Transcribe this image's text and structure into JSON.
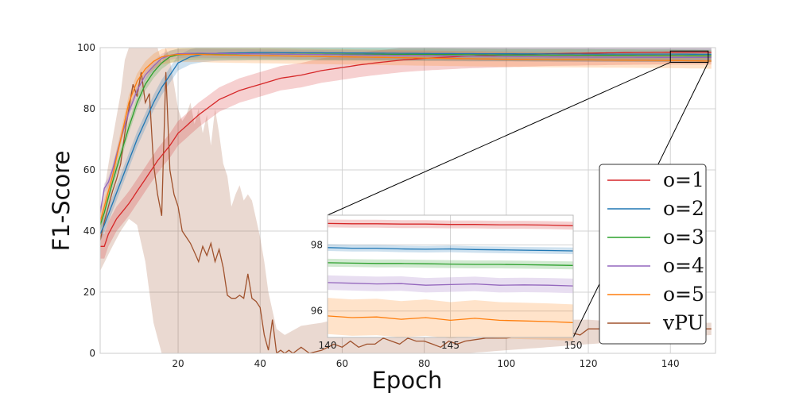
{
  "chart_data": {
    "type": "line",
    "title": "",
    "xlabel": "Epoch",
    "ylabel": "F1-Score",
    "xlim": [
      1,
      151
    ],
    "ylim": [
      0,
      100
    ],
    "xticks": [
      20,
      40,
      60,
      80,
      100,
      120,
      140
    ],
    "yticks": [
      0,
      20,
      40,
      60,
      80,
      100
    ],
    "grid": true,
    "legend_position": "lower-right",
    "series": [
      {
        "name": "o=1",
        "color": "#d62728",
        "points": [
          [
            1,
            35
          ],
          [
            2,
            35
          ],
          [
            3,
            39
          ],
          [
            5,
            44
          ],
          [
            8,
            49
          ],
          [
            10,
            53
          ],
          [
            12,
            57
          ],
          [
            15,
            63
          ],
          [
            18,
            68
          ],
          [
            20,
            72
          ],
          [
            25,
            78
          ],
          [
            30,
            83
          ],
          [
            35,
            86
          ],
          [
            40,
            88
          ],
          [
            45,
            90
          ],
          [
            50,
            91
          ],
          [
            55,
            92.5
          ],
          [
            60,
            93.5
          ],
          [
            65,
            94.5
          ],
          [
            70,
            95.3
          ],
          [
            75,
            96
          ],
          [
            80,
            96.5
          ],
          [
            90,
            97.2
          ],
          [
            100,
            97.6
          ],
          [
            110,
            98
          ],
          [
            120,
            98.2
          ],
          [
            130,
            98.4
          ],
          [
            140,
            98.5
          ],
          [
            150,
            98.5
          ]
        ],
        "band": 4
      },
      {
        "name": "o=2",
        "color": "#1f77b4",
        "points": [
          [
            1,
            39
          ],
          [
            2,
            42
          ],
          [
            4,
            49
          ],
          [
            6,
            56
          ],
          [
            8,
            63
          ],
          [
            10,
            70
          ],
          [
            12,
            76
          ],
          [
            14,
            82
          ],
          [
            16,
            87
          ],
          [
            18,
            91
          ],
          [
            20,
            95
          ],
          [
            23,
            97
          ],
          [
            26,
            97.8
          ],
          [
            30,
            98.2
          ],
          [
            40,
            98.4
          ],
          [
            60,
            98.3
          ],
          [
            80,
            98.1
          ],
          [
            100,
            98
          ],
          [
            120,
            97.9
          ],
          [
            140,
            97.9
          ],
          [
            150,
            97.8
          ]
        ],
        "band": 2.5
      },
      {
        "name": "o=3",
        "color": "#2ca02c",
        "points": [
          [
            1,
            42
          ],
          [
            2,
            46
          ],
          [
            4,
            56
          ],
          [
            6,
            65
          ],
          [
            8,
            74
          ],
          [
            10,
            82
          ],
          [
            12,
            88
          ],
          [
            14,
            92
          ],
          [
            16,
            95
          ],
          [
            18,
            97
          ],
          [
            20,
            97.7
          ],
          [
            25,
            98
          ],
          [
            30,
            98
          ],
          [
            50,
            97.9
          ],
          [
            80,
            97.8
          ],
          [
            100,
            97.6
          ],
          [
            120,
            97.5
          ],
          [
            140,
            97.4
          ],
          [
            150,
            97.3
          ]
        ],
        "band": 2
      },
      {
        "name": "o=4",
        "color": "#9467bd",
        "points": [
          [
            1,
            46
          ],
          [
            2,
            54
          ],
          [
            3,
            56
          ],
          [
            4,
            60
          ],
          [
            6,
            70
          ],
          [
            8,
            79
          ],
          [
            10,
            86
          ],
          [
            12,
            91
          ],
          [
            14,
            94
          ],
          [
            16,
            96.5
          ],
          [
            18,
            97.5
          ],
          [
            20,
            98
          ],
          [
            25,
            98.2
          ],
          [
            30,
            98.1
          ],
          [
            50,
            97.8
          ],
          [
            80,
            97.4
          ],
          [
            100,
            97.1
          ],
          [
            120,
            96.9
          ],
          [
            140,
            96.8
          ],
          [
            150,
            96.8
          ]
        ],
        "band": 1.5
      },
      {
        "name": "o=5",
        "color": "#ff7f0e",
        "points": [
          [
            1,
            43
          ],
          [
            2,
            48
          ],
          [
            4,
            58
          ],
          [
            6,
            70
          ],
          [
            8,
            82
          ],
          [
            10,
            89
          ],
          [
            12,
            93
          ],
          [
            14,
            95.5
          ],
          [
            16,
            97
          ],
          [
            18,
            97.5
          ],
          [
            20,
            97.8
          ],
          [
            25,
            97.8
          ],
          [
            30,
            97.6
          ],
          [
            50,
            97.2
          ],
          [
            80,
            96.6
          ],
          [
            100,
            96.2
          ],
          [
            120,
            96
          ],
          [
            140,
            95.8
          ],
          [
            150,
            95.6
          ]
        ],
        "band": 2.5
      },
      {
        "name": "vPU",
        "color": "#a0522d",
        "points": [
          [
            1,
            37
          ],
          [
            2,
            43
          ],
          [
            3,
            48
          ],
          [
            4,
            53
          ],
          [
            5,
            57
          ],
          [
            6,
            62
          ],
          [
            7,
            72
          ],
          [
            8,
            80
          ],
          [
            9,
            88
          ],
          [
            10,
            84
          ],
          [
            11,
            92
          ],
          [
            12,
            82
          ],
          [
            13,
            85
          ],
          [
            14,
            62
          ],
          [
            15,
            52
          ],
          [
            16,
            45
          ],
          [
            17,
            92
          ],
          [
            18,
            60
          ],
          [
            19,
            52
          ],
          [
            20,
            48
          ],
          [
            21,
            40
          ],
          [
            22,
            38
          ],
          [
            23,
            36
          ],
          [
            24,
            33
          ],
          [
            25,
            30
          ],
          [
            26,
            35
          ],
          [
            27,
            32
          ],
          [
            28,
            36
          ],
          [
            29,
            30
          ],
          [
            30,
            34
          ],
          [
            31,
            28
          ],
          [
            32,
            19
          ],
          [
            33,
            18
          ],
          [
            34,
            18
          ],
          [
            35,
            19
          ],
          [
            36,
            18
          ],
          [
            37,
            26
          ],
          [
            38,
            18
          ],
          [
            39,
            17
          ],
          [
            40,
            15
          ],
          [
            41,
            6
          ],
          [
            42,
            1
          ],
          [
            43,
            11
          ],
          [
            44,
            0
          ],
          [
            45,
            1
          ],
          [
            46,
            0
          ],
          [
            47,
            1
          ],
          [
            48,
            0
          ],
          [
            50,
            2
          ],
          [
            52,
            0
          ],
          [
            55,
            1
          ],
          [
            58,
            3
          ],
          [
            60,
            2
          ],
          [
            62,
            4
          ],
          [
            64,
            2
          ],
          [
            66,
            3
          ],
          [
            68,
            3
          ],
          [
            70,
            5
          ],
          [
            72,
            4
          ],
          [
            74,
            3
          ],
          [
            76,
            5
          ],
          [
            78,
            4
          ],
          [
            80,
            4
          ],
          [
            82,
            3
          ],
          [
            84,
            2
          ],
          [
            86,
            4
          ],
          [
            88,
            3
          ],
          [
            90,
            4
          ],
          [
            95,
            5
          ],
          [
            100,
            5
          ],
          [
            105,
            6
          ],
          [
            110,
            6
          ],
          [
            115,
            7
          ],
          [
            118,
            6
          ],
          [
            120,
            8
          ],
          [
            125,
            8
          ],
          [
            130,
            8
          ],
          [
            135,
            7
          ],
          [
            140,
            8
          ],
          [
            145,
            8
          ],
          [
            150,
            8
          ]
        ],
        "band_upper": [
          [
            1,
            45
          ],
          [
            4,
            70
          ],
          [
            6,
            85
          ],
          [
            7,
            96
          ],
          [
            8,
            100
          ],
          [
            9,
            100
          ],
          [
            10,
            100
          ],
          [
            11,
            100
          ],
          [
            12,
            100
          ],
          [
            13,
            100
          ],
          [
            14,
            100
          ],
          [
            15,
            100
          ],
          [
            16,
            95
          ],
          [
            17,
            100
          ],
          [
            18,
            96
          ],
          [
            19,
            88
          ],
          [
            20,
            80
          ],
          [
            21,
            76
          ],
          [
            22,
            78
          ],
          [
            23,
            82
          ],
          [
            24,
            75
          ],
          [
            25,
            80
          ],
          [
            26,
            72
          ],
          [
            27,
            78
          ],
          [
            28,
            68
          ],
          [
            29,
            80
          ],
          [
            30,
            72
          ],
          [
            31,
            62
          ],
          [
            32,
            58
          ],
          [
            33,
            48
          ],
          [
            34,
            52
          ],
          [
            35,
            55
          ],
          [
            36,
            50
          ],
          [
            37,
            52
          ],
          [
            38,
            50
          ],
          [
            39,
            44
          ],
          [
            40,
            38
          ],
          [
            41,
            30
          ],
          [
            42,
            20
          ],
          [
            43,
            14
          ],
          [
            44,
            8
          ],
          [
            46,
            6
          ],
          [
            50,
            9
          ],
          [
            55,
            10
          ],
          [
            58,
            11
          ],
          [
            60,
            12
          ],
          [
            65,
            14
          ],
          [
            70,
            20
          ],
          [
            75,
            14
          ],
          [
            80,
            15
          ],
          [
            85,
            13
          ],
          [
            90,
            12
          ],
          [
            95,
            12
          ],
          [
            100,
            11
          ],
          [
            110,
            11
          ],
          [
            120,
            11
          ],
          [
            130,
            10
          ],
          [
            140,
            10
          ],
          [
            150,
            10
          ]
        ],
        "band_lower": [
          [
            1,
            27
          ],
          [
            4,
            35
          ],
          [
            6,
            40
          ],
          [
            8,
            44
          ],
          [
            10,
            42
          ],
          [
            12,
            30
          ],
          [
            14,
            10
          ],
          [
            16,
            0
          ],
          [
            18,
            0
          ],
          [
            20,
            0
          ],
          [
            24,
            0
          ],
          [
            30,
            0
          ],
          [
            40,
            0
          ],
          [
            50,
            0
          ],
          [
            60,
            0
          ],
          [
            70,
            0
          ],
          [
            80,
            0
          ],
          [
            90,
            0
          ],
          [
            100,
            1
          ],
          [
            110,
            2
          ],
          [
            120,
            3
          ],
          [
            130,
            4
          ],
          [
            140,
            5
          ],
          [
            150,
            6
          ]
        ]
      }
    ],
    "inset": {
      "xlim": [
        140,
        150
      ],
      "ylim": [
        95.2,
        98.9
      ],
      "xticks": [
        140,
        145,
        150
      ],
      "yticks": [
        96,
        98
      ],
      "series": [
        {
          "name": "o=1",
          "y": [
            98.65,
            98.64,
            98.64,
            98.63,
            98.63,
            98.62,
            98.62,
            98.61,
            98.61,
            98.6,
            98.58
          ],
          "band": 0.12
        },
        {
          "name": "o=2",
          "y": [
            97.92,
            97.9,
            97.9,
            97.88,
            97.87,
            97.88,
            97.86,
            97.85,
            97.84,
            97.83,
            97.82
          ],
          "band": 0.1
        },
        {
          "name": "o=3",
          "y": [
            97.46,
            97.45,
            97.44,
            97.44,
            97.43,
            97.42,
            97.41,
            97.41,
            97.4,
            97.39,
            97.38
          ],
          "band": 0.12
        },
        {
          "name": "o=4",
          "y": [
            96.86,
            96.84,
            96.82,
            96.83,
            96.78,
            96.8,
            96.82,
            96.78,
            96.79,
            96.78,
            96.76
          ],
          "band": 0.22
        },
        {
          "name": "o=5",
          "y": [
            95.85,
            95.8,
            95.82,
            95.75,
            95.8,
            95.72,
            95.78,
            95.72,
            95.7,
            95.68,
            95.65
          ],
          "band": 0.55
        }
      ]
    }
  }
}
